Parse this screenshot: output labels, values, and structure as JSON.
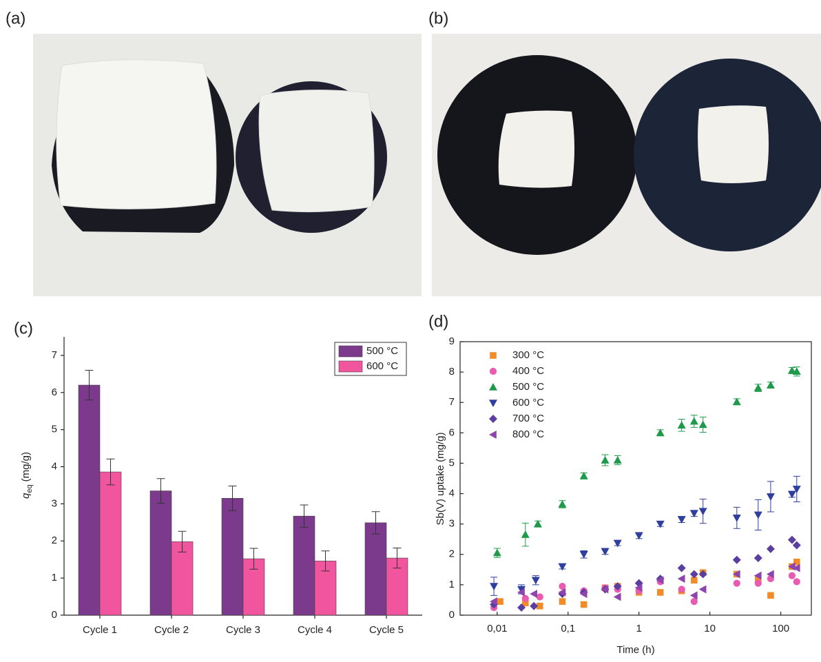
{
  "panel_labels": [
    "(a)",
    "(b)",
    "(c)",
    "(d)"
  ],
  "chart_data": [
    {
      "type": "bar",
      "ylabel": {
        "symbol": "q",
        "subscript": "eq",
        "unit": "(mg/g)"
      },
      "categories": [
        "Cycle 1",
        "Cycle 2",
        "Cycle 3",
        "Cycle 4",
        "Cycle 5"
      ],
      "series": [
        {
          "name": "500 °C",
          "color": "#7b3a8c",
          "values": [
            6.2,
            3.35,
            3.15,
            2.67,
            2.49
          ],
          "errors": [
            0.4,
            0.33,
            0.33,
            0.3,
            0.3
          ]
        },
        {
          "name": "600 °C",
          "color": "#f0559e",
          "values": [
            3.86,
            1.98,
            1.52,
            1.46,
            1.54
          ],
          "errors": [
            0.35,
            0.28,
            0.28,
            0.27,
            0.27
          ]
        }
      ],
      "ylim": [
        0,
        7.5
      ],
      "yticks": [
        0,
        1,
        2,
        3,
        4,
        5,
        6,
        7
      ],
      "legend": "upper-right"
    },
    {
      "type": "scatter",
      "xlabel": "Time (h)",
      "ylabel": "Sb(V) uptake (mg/g)",
      "xscale": "log",
      "xlim": [
        0.003,
        270
      ],
      "xticks": [
        {
          "value": 0.01,
          "label": "0,01"
        },
        {
          "value": 0.1,
          "label": "0,1"
        },
        1,
        10,
        100
      ],
      "ylim": [
        0,
        9
      ],
      "yticks": [
        0,
        1,
        2,
        3,
        4,
        5,
        6,
        7,
        8,
        9
      ],
      "legend": "upper-left",
      "series": [
        {
          "name": "300 °C",
          "color": "#f28c28",
          "marker": "square",
          "x": [
            0.011,
            0.025,
            0.04,
            0.083,
            0.167,
            0.333,
            0.5,
            1,
            2,
            4,
            6,
            8,
            24,
            48,
            72,
            144,
            168
          ],
          "values": [
            0.45,
            0.4,
            0.3,
            0.45,
            0.35,
            0.9,
            0.95,
            0.75,
            0.75,
            0.8,
            1.15,
            1.4,
            1.35,
            1.2,
            0.65,
            1.6,
            1.75
          ]
        },
        {
          "name": "400 °C",
          "color": "#e85bb0",
          "marker": "circle",
          "x": [
            0.009,
            0.025,
            0.04,
            0.083,
            0.167,
            0.333,
            0.5,
            1,
            2,
            4,
            6,
            24,
            48,
            72,
            144,
            168
          ],
          "values": [
            0.25,
            0.55,
            0.6,
            0.95,
            0.8,
            0.9,
            0.85,
            0.8,
            1.1,
            0.85,
            0.45,
            1.05,
            1.05,
            1.2,
            1.3,
            1.1
          ]
        },
        {
          "name": "500 °C",
          "color": "#1f9a4a",
          "marker": "triangle-up",
          "x": [
            0.01,
            0.025,
            0.0375,
            0.083,
            0.167,
            0.333,
            0.5,
            2,
            4,
            6,
            8,
            24,
            48,
            72,
            144,
            168
          ],
          "values": [
            2.05,
            2.65,
            3.0,
            3.65,
            4.58,
            5.1,
            5.1,
            6.0,
            6.25,
            6.38,
            6.27,
            7.02,
            7.48,
            7.57,
            8.05,
            8.02
          ],
          "errors": [
            0.15,
            0.38,
            0.1,
            0.12,
            0.1,
            0.18,
            0.15,
            0.1,
            0.2,
            0.2,
            0.25,
            0.1,
            0.12,
            0.1,
            0.1,
            0.15
          ]
        },
        {
          "name": "600 °C",
          "color": "#2e3f9e",
          "marker": "triangle-down",
          "x": [
            0.009,
            0.022,
            0.035,
            0.083,
            0.167,
            0.333,
            0.5,
            1,
            2,
            4,
            6,
            8,
            24,
            48,
            72,
            144,
            168
          ],
          "values": [
            0.95,
            0.85,
            1.15,
            1.6,
            2.0,
            2.1,
            2.37,
            2.62,
            3.0,
            3.15,
            3.35,
            3.42,
            3.2,
            3.3,
            3.9,
            3.98,
            4.15
          ],
          "errors": [
            0.3,
            0.15,
            0.15,
            0.08,
            0.12,
            0.1,
            0.08,
            0.1,
            0.08,
            0.1,
            0.1,
            0.4,
            0.35,
            0.5,
            0.5,
            0.1,
            0.42
          ]
        },
        {
          "name": "700 °C",
          "color": "#5b3fa0",
          "marker": "diamond",
          "x": [
            0.009,
            0.022,
            0.033,
            0.083,
            0.167,
            0.333,
            0.5,
            1,
            2,
            4,
            6,
            8,
            24,
            48,
            72,
            144,
            168
          ],
          "values": [
            0.35,
            0.25,
            0.3,
            0.7,
            0.75,
            0.85,
            0.95,
            1.05,
            1.2,
            1.55,
            1.35,
            1.35,
            1.82,
            1.88,
            2.18,
            2.48,
            2.3
          ]
        },
        {
          "name": "800 °C",
          "color": "#8e44ad",
          "marker": "triangle-left",
          "x": [
            0.009,
            0.022,
            0.033,
            0.083,
            0.167,
            0.333,
            0.5,
            1,
            2,
            4,
            6,
            8,
            24,
            48,
            72,
            144,
            168
          ],
          "values": [
            0.45,
            0.75,
            0.7,
            0.75,
            0.7,
            0.85,
            0.6,
            0.9,
            1.15,
            1.2,
            0.65,
            0.85,
            1.35,
            1.3,
            1.35,
            1.6,
            1.55
          ]
        }
      ]
    }
  ]
}
